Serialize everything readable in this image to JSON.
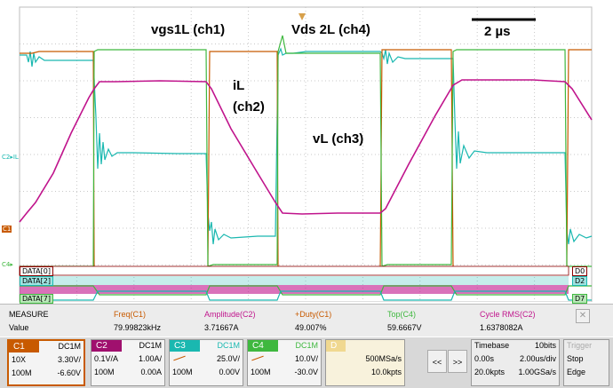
{
  "labels": {
    "vgs1L": "vgs1L (ch1)",
    "vds2L": "Vds 2L (ch4)",
    "iL_a": "iL",
    "iL_b": "(ch2)",
    "vL": "vL (ch3)",
    "scale_bar": "2 µs"
  },
  "left_markers": {
    "c2": "C2▸IL",
    "c1": "C1",
    "c4": "C4▸"
  },
  "data_labels": {
    "d0": "DATA[0]",
    "d2": "DATA[2]",
    "d7": "DATA[7]"
  },
  "right_labels": {
    "d0": "D0",
    "d2": "D2",
    "d7": "D7"
  },
  "colors": {
    "ch1": "#c85a00",
    "ch2": "#c0148c",
    "ch3": "#1ab8b0",
    "ch4": "#3fb83f",
    "digital": "#8b0000",
    "grid": "#c8c8c8"
  },
  "measure": {
    "title": "MEASURE",
    "row_label": "Value",
    "items": [
      {
        "header": "Freq(C1)",
        "value": "79.99823kHz",
        "color": "#c85a00"
      },
      {
        "header": "Amplitude(C2)",
        "value": "3.71667A",
        "color": "#c0148c"
      },
      {
        "header": "+Duty(C1)",
        "value": "49.007%",
        "color": "#c85a00"
      },
      {
        "header": "Top(C4)",
        "value": "59.6667V",
        "color": "#3fb83f"
      },
      {
        "header": "Cycle RMS(C2)",
        "value": "1.6378082A",
        "color": "#c0148c"
      }
    ]
  },
  "channels": [
    {
      "name": "C1",
      "coupling": "DC1M",
      "probe": "10X",
      "scale": "3.30V/",
      "bw": "100M",
      "offset": "-6.60V",
      "color": "#c85a00"
    },
    {
      "name": "C2",
      "coupling": "DC1M",
      "probe": "0.1V/A",
      "scale": "1.00A/",
      "bw": "100M",
      "offset": "0.00A",
      "color": "#a0106e"
    },
    {
      "name": "C3",
      "coupling": "DC1M",
      "probe": "",
      "scale": "25.0V/",
      "bw": "100M",
      "offset": "0.00V",
      "color": "#1ab8b0"
    },
    {
      "name": "C4",
      "coupling": "DC1M",
      "probe": "",
      "scale": "10.0V/",
      "bw": "100M",
      "offset": "-30.0V",
      "color": "#3fb83f"
    }
  ],
  "digital_panel": {
    "name": "D",
    "rate": "500MSa/s",
    "points": "10.0kpts"
  },
  "nav": {
    "prev": "<<",
    "next": ">>"
  },
  "timebase": {
    "title": "Timebase",
    "bits": "10bits",
    "delay": "0.00s",
    "scale": "2.00us/div",
    "points": "20.0kpts",
    "rate": "1.00GSa/s"
  },
  "trigger": {
    "title": "Trigger",
    "mode": "Stop",
    "type": "Edge"
  }
}
